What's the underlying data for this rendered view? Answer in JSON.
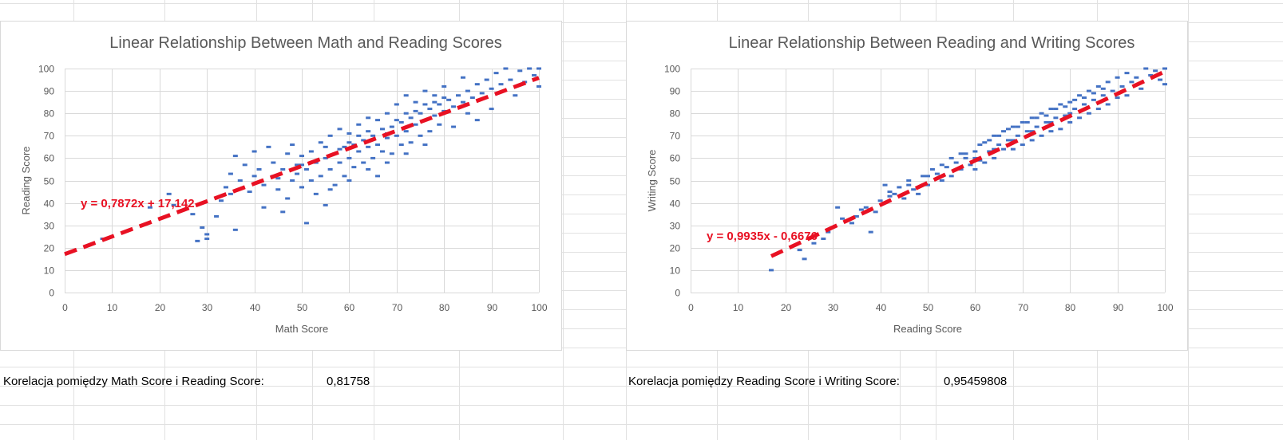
{
  "colors": {
    "points": "#4472c4",
    "trendline": "#e81123",
    "equation": "#e81123",
    "gridline": "#d9d9d9",
    "cellgrid": "#e1e1e1",
    "title": "#595959",
    "axis_text": "#595959"
  },
  "chart_data": [
    {
      "type": "scatter",
      "title": "Linear Relationship Between Math and Reading Scores",
      "xlabel": "Math Score",
      "ylabel": "Reading Score",
      "xlim": [
        0,
        100
      ],
      "ylim": [
        0,
        100
      ],
      "xticks": [
        "0",
        "10",
        "20",
        "30",
        "40",
        "50",
        "60",
        "70",
        "80",
        "90",
        "100"
      ],
      "yticks": [
        "0",
        "10",
        "20",
        "30",
        "40",
        "50",
        "60",
        "70",
        "80",
        "90",
        "100"
      ],
      "grid": true,
      "legend": "none",
      "trendline": {
        "slope": 0.7872,
        "intercept": 17.142,
        "x_range": [
          0,
          100
        ],
        "style": "dashed"
      },
      "equation_label": "y = 0,7872x + 17,142",
      "points": [
        [
          8,
          24
        ],
        [
          18,
          38
        ],
        [
          22,
          44
        ],
        [
          23,
          39
        ],
        [
          27,
          35
        ],
        [
          28,
          23
        ],
        [
          29,
          29
        ],
        [
          30,
          26
        ],
        [
          30,
          24
        ],
        [
          32,
          34
        ],
        [
          33,
          41
        ],
        [
          34,
          47
        ],
        [
          35,
          53
        ],
        [
          35,
          44
        ],
        [
          36,
          28
        ],
        [
          36,
          61
        ],
        [
          37,
          50
        ],
        [
          38,
          57
        ],
        [
          39,
          45
        ],
        [
          40,
          63
        ],
        [
          40,
          52
        ],
        [
          41,
          55
        ],
        [
          42,
          48
        ],
        [
          42,
          38
        ],
        [
          43,
          65
        ],
        [
          44,
          52
        ],
        [
          44,
          58
        ],
        [
          45,
          46
        ],
        [
          46,
          36
        ],
        [
          46,
          55
        ],
        [
          47,
          62
        ],
        [
          47,
          42
        ],
        [
          48,
          50
        ],
        [
          48,
          66
        ],
        [
          49,
          57
        ],
        [
          49,
          53
        ],
        [
          50,
          47
        ],
        [
          50,
          61
        ],
        [
          51,
          55
        ],
        [
          51,
          31
        ],
        [
          52,
          63
        ],
        [
          52,
          50
        ],
        [
          53,
          58
        ],
        [
          53,
          44
        ],
        [
          54,
          52
        ],
        [
          54,
          67
        ],
        [
          55,
          60
        ],
        [
          55,
          39
        ],
        [
          56,
          55
        ],
        [
          56,
          70
        ],
        [
          57,
          62
        ],
        [
          57,
          48
        ],
        [
          58,
          58
        ],
        [
          58,
          73
        ],
        [
          59,
          65
        ],
        [
          59,
          52
        ],
        [
          60,
          60
        ],
        [
          60,
          71
        ],
        [
          61,
          66
        ],
        [
          61,
          56
        ],
        [
          62,
          63
        ],
        [
          62,
          75
        ],
        [
          63,
          68
        ],
        [
          63,
          58
        ],
        [
          64,
          65
        ],
        [
          64,
          78
        ],
        [
          65,
          70
        ],
        [
          65,
          60
        ],
        [
          66,
          66
        ],
        [
          66,
          52
        ],
        [
          67,
          73
        ],
        [
          67,
          63
        ],
        [
          68,
          69
        ],
        [
          68,
          80
        ],
        [
          69,
          74
        ],
        [
          69,
          62
        ],
        [
          70,
          70
        ],
        [
          70,
          84
        ],
        [
          71,
          76
        ],
        [
          71,
          66
        ],
        [
          72,
          72
        ],
        [
          72,
          88
        ],
        [
          73,
          78
        ],
        [
          73,
          67
        ],
        [
          74,
          75
        ],
        [
          74,
          85
        ],
        [
          75,
          80
        ],
        [
          75,
          70
        ],
        [
          76,
          77
        ],
        [
          76,
          90
        ],
        [
          77,
          82
        ],
        [
          77,
          72
        ],
        [
          78,
          79
        ],
        [
          78,
          88
        ],
        [
          79,
          84
        ],
        [
          79,
          75
        ],
        [
          80,
          81
        ],
        [
          80,
          92
        ],
        [
          81,
          86
        ],
        [
          82,
          83
        ],
        [
          82,
          74
        ],
        [
          83,
          88
        ],
        [
          84,
          85
        ],
        [
          84,
          96
        ],
        [
          85,
          90
        ],
        [
          85,
          80
        ],
        [
          86,
          87
        ],
        [
          87,
          93
        ],
        [
          87,
          77
        ],
        [
          88,
          89
        ],
        [
          89,
          95
        ],
        [
          90,
          91
        ],
        [
          90,
          82
        ],
        [
          91,
          98
        ],
        [
          92,
          93
        ],
        [
          93,
          100
        ],
        [
          94,
          95
        ],
        [
          95,
          88
        ],
        [
          96,
          99
        ],
        [
          97,
          94
        ],
        [
          98,
          100
        ],
        [
          99,
          97
        ],
        [
          100,
          100
        ],
        [
          100,
          92
        ],
        [
          64,
          72
        ],
        [
          66,
          77
        ],
        [
          68,
          71
        ],
        [
          58,
          64
        ],
        [
          62,
          70
        ],
        [
          72,
          80
        ],
        [
          76,
          84
        ],
        [
          60,
          67
        ],
        [
          55,
          65
        ],
        [
          50,
          57
        ],
        [
          45,
          51
        ],
        [
          70,
          77
        ],
        [
          74,
          81
        ],
        [
          78,
          85
        ],
        [
          80,
          87
        ],
        [
          56,
          46
        ],
        [
          60,
          50
        ],
        [
          64,
          55
        ],
        [
          68,
          58
        ],
        [
          72,
          62
        ],
        [
          76,
          66
        ]
      ]
    },
    {
      "type": "scatter",
      "title": "Linear Relationship Between Reading and Writing Scores",
      "xlabel": "Reading Score",
      "ylabel": "Writing Score",
      "xlim": [
        0,
        100
      ],
      "ylim": [
        0,
        100
      ],
      "xticks": [
        "0",
        "10",
        "20",
        "30",
        "40",
        "50",
        "60",
        "70",
        "80",
        "90",
        "100"
      ],
      "yticks": [
        "0",
        "10",
        "20",
        "30",
        "40",
        "50",
        "60",
        "70",
        "80",
        "90",
        "100"
      ],
      "grid": true,
      "legend": "none",
      "trendline": {
        "slope": 0.9935,
        "intercept": -0.6676,
        "x_range": [
          17,
          100
        ],
        "style": "dashed"
      },
      "equation_label": "y = 0,9935x - 0,6676",
      "points": [
        [
          17,
          10
        ],
        [
          23,
          19
        ],
        [
          24,
          15
        ],
        [
          26,
          22
        ],
        [
          28,
          24
        ],
        [
          29,
          27
        ],
        [
          31,
          38
        ],
        [
          32,
          33
        ],
        [
          34,
          31
        ],
        [
          35,
          34
        ],
        [
          36,
          37
        ],
        [
          37,
          38
        ],
        [
          38,
          27
        ],
        [
          39,
          36
        ],
        [
          40,
          41
        ],
        [
          41,
          48
        ],
        [
          42,
          45
        ],
        [
          43,
          44
        ],
        [
          44,
          47
        ],
        [
          45,
          42
        ],
        [
          46,
          50
        ],
        [
          47,
          46
        ],
        [
          48,
          44
        ],
        [
          49,
          52
        ],
        [
          50,
          48
        ],
        [
          51,
          55
        ],
        [
          52,
          53
        ],
        [
          53,
          50
        ],
        [
          54,
          56
        ],
        [
          55,
          52
        ],
        [
          56,
          58
        ],
        [
          57,
          55
        ],
        [
          58,
          60
        ],
        [
          59,
          57
        ],
        [
          60,
          63
        ],
        [
          60,
          55
        ],
        [
          61,
          59
        ],
        [
          62,
          67
        ],
        [
          62,
          58
        ],
        [
          63,
          63
        ],
        [
          64,
          70
        ],
        [
          64,
          60
        ],
        [
          65,
          66
        ],
        [
          66,
          64
        ],
        [
          66,
          72
        ],
        [
          67,
          68
        ],
        [
          68,
          74
        ],
        [
          68,
          64
        ],
        [
          69,
          70
        ],
        [
          70,
          76
        ],
        [
          70,
          66
        ],
        [
          71,
          72
        ],
        [
          72,
          78
        ],
        [
          72,
          68
        ],
        [
          73,
          74
        ],
        [
          74,
          80
        ],
        [
          74,
          70
        ],
        [
          75,
          76
        ],
        [
          76,
          82
        ],
        [
          76,
          72
        ],
        [
          77,
          78
        ],
        [
          78,
          84
        ],
        [
          78,
          73
        ],
        [
          79,
          79
        ],
        [
          80,
          85
        ],
        [
          80,
          76
        ],
        [
          81,
          82
        ],
        [
          82,
          88
        ],
        [
          82,
          78
        ],
        [
          83,
          84
        ],
        [
          84,
          90
        ],
        [
          84,
          80
        ],
        [
          85,
          86
        ],
        [
          86,
          92
        ],
        [
          86,
          82
        ],
        [
          87,
          88
        ],
        [
          88,
          94
        ],
        [
          88,
          84
        ],
        [
          89,
          90
        ],
        [
          90,
          96
        ],
        [
          90,
          87
        ],
        [
          91,
          92
        ],
        [
          92,
          98
        ],
        [
          92,
          88
        ],
        [
          93,
          94
        ],
        [
          94,
          96
        ],
        [
          95,
          91
        ],
        [
          96,
          100
        ],
        [
          97,
          97
        ],
        [
          98,
          99
        ],
        [
          99,
          95
        ],
        [
          100,
          100
        ],
        [
          100,
          93
        ],
        [
          55,
          60
        ],
        [
          58,
          62
        ],
        [
          63,
          68
        ],
        [
          67,
          73
        ],
        [
          71,
          76
        ],
        [
          75,
          79
        ],
        [
          79,
          83
        ],
        [
          83,
          87
        ],
        [
          87,
          91
        ],
        [
          53,
          57
        ],
        [
          57,
          62
        ],
        [
          61,
          66
        ],
        [
          65,
          70
        ],
        [
          69,
          74
        ],
        [
          73,
          78
        ],
        [
          77,
          82
        ],
        [
          81,
          86
        ],
        [
          85,
          89
        ],
        [
          60,
          60
        ],
        [
          64,
          64
        ],
        [
          68,
          68
        ],
        [
          72,
          72
        ],
        [
          76,
          76
        ],
        [
          80,
          80
        ],
        [
          50,
          52
        ],
        [
          46,
          48
        ],
        [
          42,
          43
        ]
      ]
    }
  ],
  "cells": {
    "label1": "Korelacja pomiędzy Math Score i Reading Score:",
    "value1": "0,81758",
    "label2": "Korelacja pomiędzy Reading Score i Writing Score:",
    "value2": "0,95459808"
  }
}
